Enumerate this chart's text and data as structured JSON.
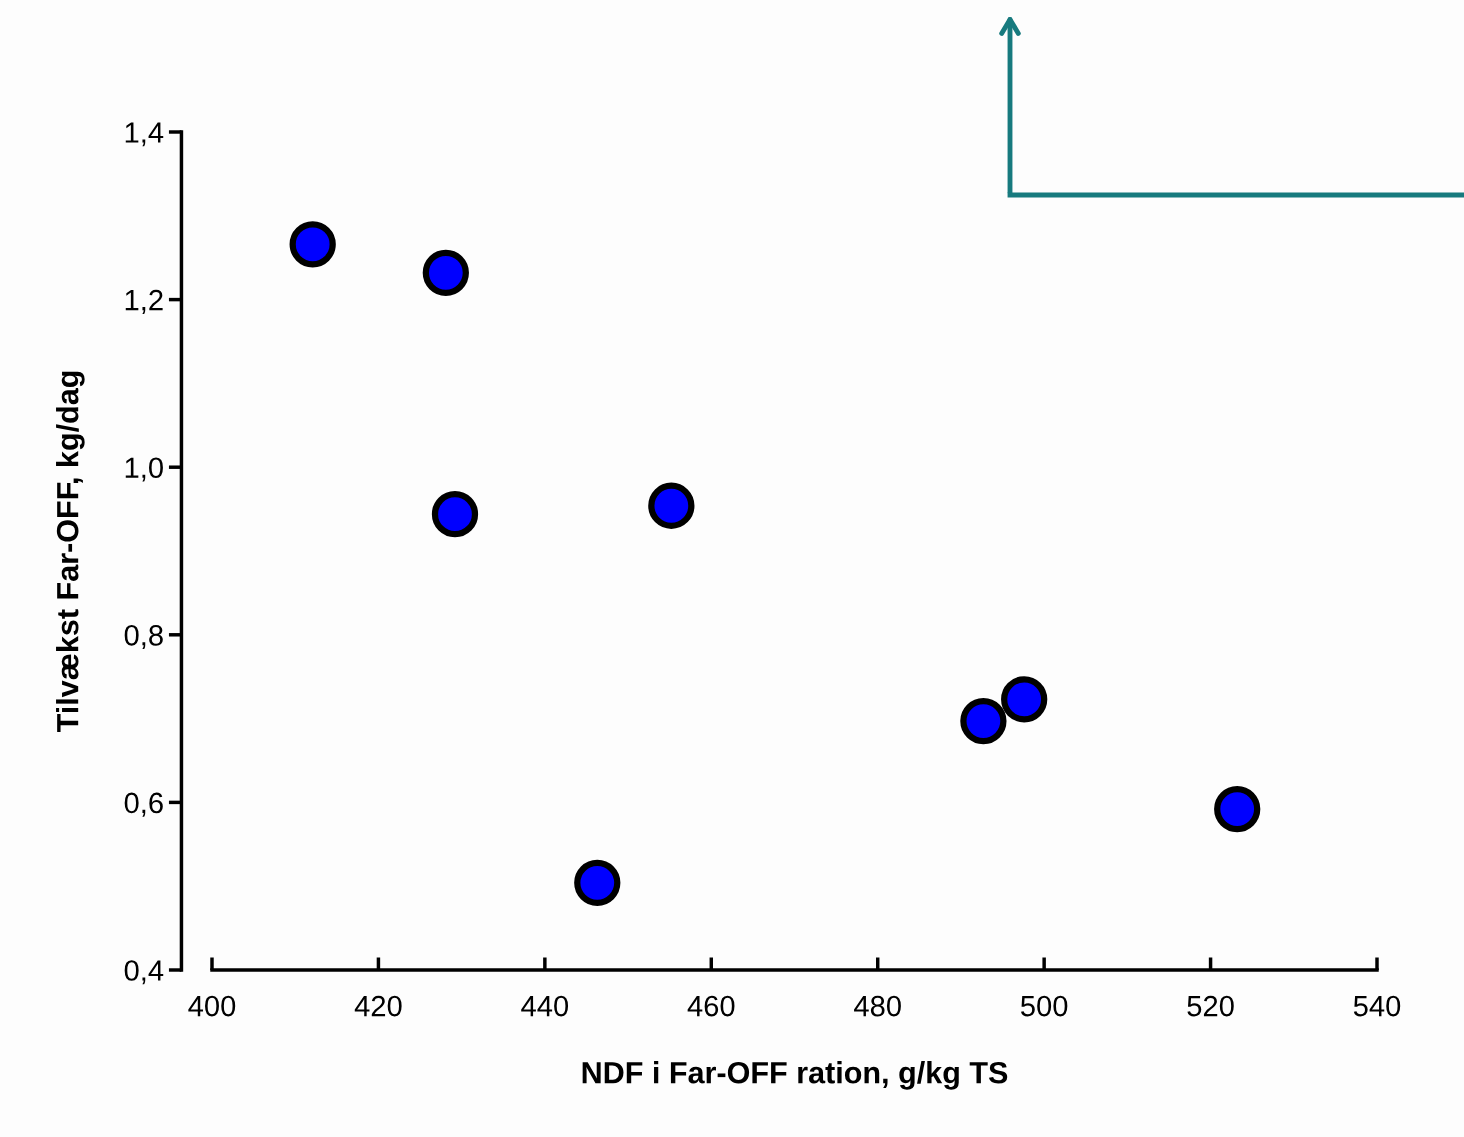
{
  "chart_data": {
    "type": "scatter",
    "xlabel": "NDF i Far-OFF ration, g/kg TS",
    "ylabel": "Tilvækst Far-OFF, kg/dag",
    "x": [
      412.1,
      428.1,
      429.2,
      455.2,
      446.3,
      492.7,
      497.6,
      523.2
    ],
    "series": [
      {
        "color": "#0000ff",
        "values": [
          1.266,
          1.232,
          0.944,
          0.954,
          0.504,
          0.697,
          0.723,
          0.592
        ]
      }
    ],
    "marker": "circle",
    "grid": false,
    "legend": false,
    "xlim": [
      400,
      540
    ],
    "xticks": [
      400,
      420,
      440,
      460,
      480,
      500,
      520,
      540
    ],
    "ylim": [
      0.4,
      1.4
    ],
    "yticks": [
      {
        "value": 0.4,
        "label": "0,4"
      },
      {
        "value": 0.6,
        "label": "0,6"
      },
      {
        "value": 0.8,
        "label": "0,8"
      },
      {
        "value": 1.0,
        "label": "1,0"
      },
      {
        "value": 1.2,
        "label": "1,2"
      },
      {
        "value": 1.4,
        "label": "1,4"
      }
    ]
  }
}
